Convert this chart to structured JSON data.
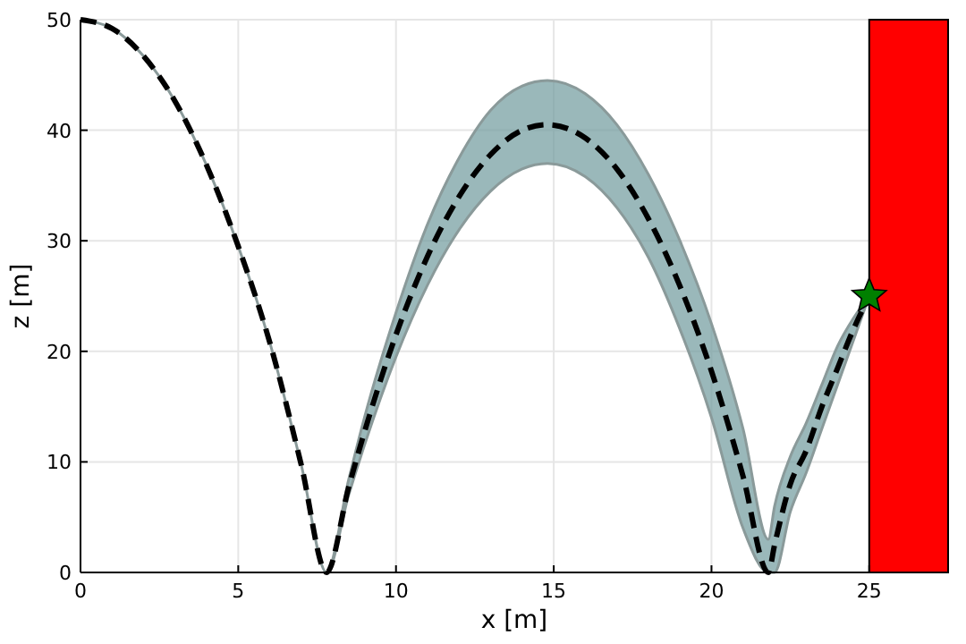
{
  "chart_data": {
    "type": "line",
    "xlabel": "x [m]",
    "ylabel": "z [m]",
    "x": [
      0,
      1,
      2,
      3,
      4,
      5,
      6,
      7,
      7.8,
      8.5,
      9,
      10,
      11,
      12,
      13,
      14,
      14.8,
      16,
      17,
      18,
      19,
      20,
      21,
      21.8,
      22,
      22.5,
      23,
      23.5,
      24,
      24.5,
      25
    ],
    "xlim": [
      0,
      27.5
    ],
    "ylim": [
      0,
      50
    ],
    "xticks": [
      0,
      5,
      10,
      15,
      20,
      25
    ],
    "yticks": [
      0,
      10,
      20,
      30,
      40,
      50
    ],
    "grid": true,
    "series": [
      {
        "color": "#000000",
        "line_style": "dashed",
        "marker": "none",
        "values": [
          50,
          49.2,
          46.7,
          42.6,
          36.8,
          29.5,
          20.8,
          9.7,
          0,
          7.7,
          12.7,
          21.5,
          28.6,
          34,
          37.8,
          40,
          40.5,
          39.3,
          36.5,
          32,
          25.9,
          18.2,
          8.7,
          0,
          2.5,
          8,
          11,
          15,
          18.5,
          22,
          25
        ],
        "lower": [
          50,
          49.2,
          46.7,
          42.6,
          36.8,
          29.5,
          20.8,
          9.7,
          0,
          7,
          11.5,
          19.5,
          26,
          31,
          34.5,
          36.5,
          37,
          35.8,
          33,
          28.5,
          22,
          14,
          4,
          0,
          0,
          5.5,
          9,
          13,
          17,
          21,
          25
        ],
        "upper": [
          50,
          49.2,
          46.7,
          42.6,
          36.8,
          29.5,
          20.8,
          9.7,
          0,
          8.4,
          14,
          23.5,
          31.5,
          37.5,
          41.8,
          44,
          44.5,
          43.3,
          40.5,
          36,
          30,
          22.5,
          13,
          3,
          6,
          10.5,
          13.5,
          17,
          20.5,
          23,
          25
        ]
      },
      {
        "type": "scatter",
        "color": "#008000",
        "marker": "star",
        "x": [
          25
        ],
        "values": [
          25
        ]
      }
    ],
    "bands": [
      {
        "axis": "x",
        "from": 25,
        "to": 27.5,
        "color": "#ff0000"
      }
    ]
  }
}
